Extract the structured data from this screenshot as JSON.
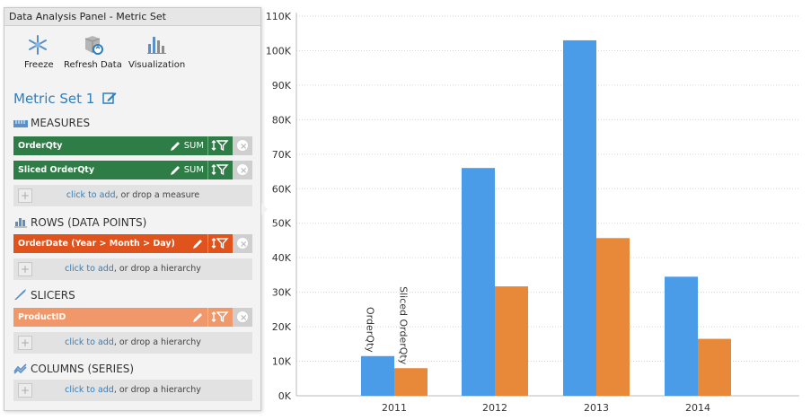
{
  "panel": {
    "title": "Data Analysis Panel - Metric Set",
    "toolbar": [
      {
        "label": "Freeze",
        "icon": "freeze-icon"
      },
      {
        "label": "Refresh Data",
        "icon": "refresh-data-icon"
      },
      {
        "label": "Visualization",
        "icon": "visualization-icon"
      }
    ],
    "metric_set_title": "Metric Set 1",
    "measures": {
      "heading": "MEASURES",
      "items": [
        {
          "label": "OrderQty",
          "agg": "SUM"
        },
        {
          "label": "Sliced OrderQty",
          "agg": "SUM"
        }
      ],
      "drop_link": "click to add",
      "drop_text": ", or drop a measure"
    },
    "rows": {
      "heading": "ROWS (DATA POINTS)",
      "items": [
        {
          "label": "OrderDate (Year > Month > Day)"
        }
      ],
      "drop_link": "click to add",
      "drop_text": ", or drop a hierarchy"
    },
    "slicers": {
      "heading": "SLICERS",
      "items": [
        {
          "label": "ProductID"
        }
      ],
      "drop_link": "click to add",
      "drop_text": ", or drop a hierarchy"
    },
    "columns": {
      "heading": "COLUMNS (SERIES)",
      "drop_link": "click to add",
      "drop_text": ", or drop a hierarchy"
    }
  },
  "colors": {
    "measure_chip": "#2f7d46",
    "row_chip": "#e0531d",
    "slicer_chip": "#f0986a",
    "accent_link": "#2d7fc1",
    "series_orderqty": "#4a9be8",
    "series_sliced": "#e8893a"
  },
  "chart_data": {
    "type": "bar",
    "categories": [
      "2011",
      "2012",
      "2013",
      "2014"
    ],
    "series": [
      {
        "name": "OrderQty",
        "values": [
          11500,
          66000,
          103000,
          34500
        ]
      },
      {
        "name": "Sliced OrderQty",
        "values": [
          8000,
          31700,
          45700,
          16500
        ]
      }
    ],
    "ylim": [
      0,
      110000
    ],
    "yticks": [
      "0K",
      "10K",
      "20K",
      "30K",
      "40K",
      "50K",
      "60K",
      "70K",
      "80K",
      "90K",
      "100K",
      "110K"
    ],
    "grid": true,
    "series_labels_on_first_category": true
  }
}
